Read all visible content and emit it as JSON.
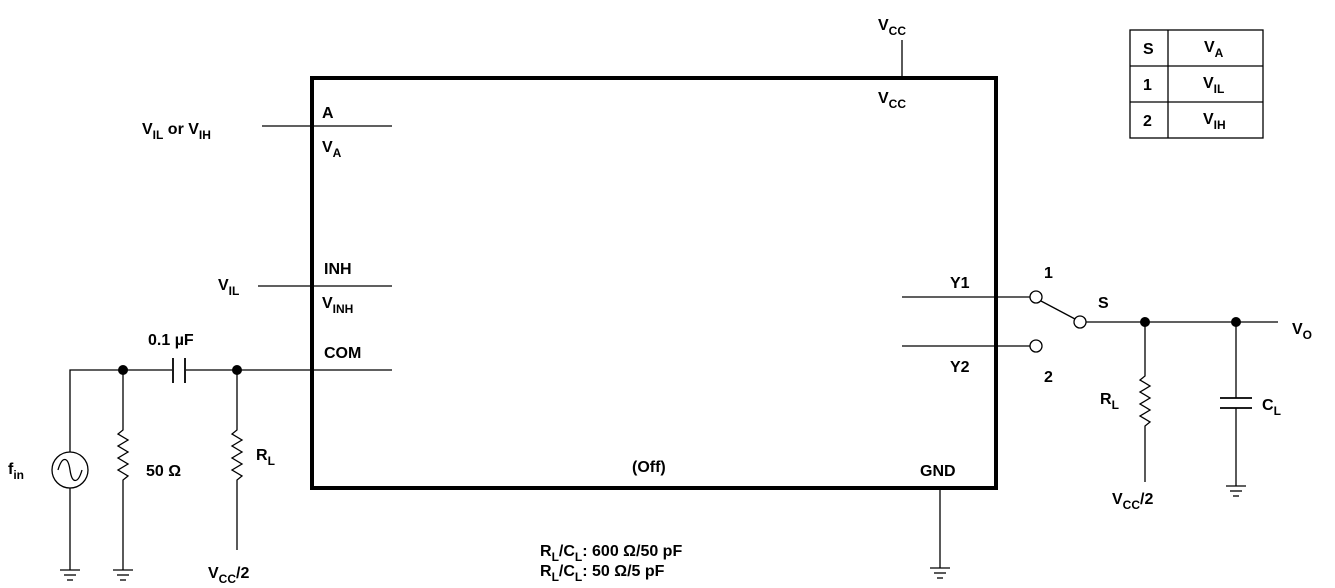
{
  "chip": {
    "pin_a": "A",
    "pin_va_main": "V",
    "pin_va_sub": "A",
    "pin_vcc_main": "V",
    "pin_vcc_sub": "CC",
    "pin_inh": "INH",
    "pin_vinh_main": "V",
    "pin_vinh_sub": "INH",
    "pin_com": "COM",
    "pin_y1": "Y1",
    "pin_y2": "Y2",
    "pin_gnd": "GND",
    "status": "(Off)"
  },
  "external": {
    "vcc_top_main": "V",
    "vcc_top_sub": "CC",
    "input_a_v1": "V",
    "input_a_s1": "IL",
    "input_a_or": " or V",
    "input_a_s2": "IH",
    "input_inh_main": "V",
    "input_inh_sub": "IL",
    "cap_value": "0.1 µF",
    "source_main": "f",
    "source_sub": "in",
    "res_50": "50 Ω",
    "rl_main": "R",
    "rl_sub": "L",
    "vcc2_main": "V",
    "vcc2_sub": "CC",
    "vcc2_tail": "/2",
    "switch_label": "S",
    "switch_pos1": "1",
    "switch_pos2": "2",
    "out_main": "V",
    "out_sub": "O",
    "cl_main": "C",
    "cl_sub": "L"
  },
  "table": {
    "header": {
      "s": "S",
      "va_main": "V",
      "va_sub": "A"
    },
    "rows": [
      {
        "s": "1",
        "v_main": "V",
        "v_sub": "IL"
      },
      {
        "s": "2",
        "v_main": "V",
        "v_sub": "IH"
      }
    ]
  },
  "notes": [
    {
      "r_main": "R",
      "r_sub": "L",
      "slash": "/C",
      "c_sub": "L",
      "value": ": 600 Ω/50 pF"
    },
    {
      "r_main": "R",
      "r_sub": "L",
      "slash": "/C",
      "c_sub": "L",
      "value": ": 50 Ω/5 pF"
    }
  ]
}
